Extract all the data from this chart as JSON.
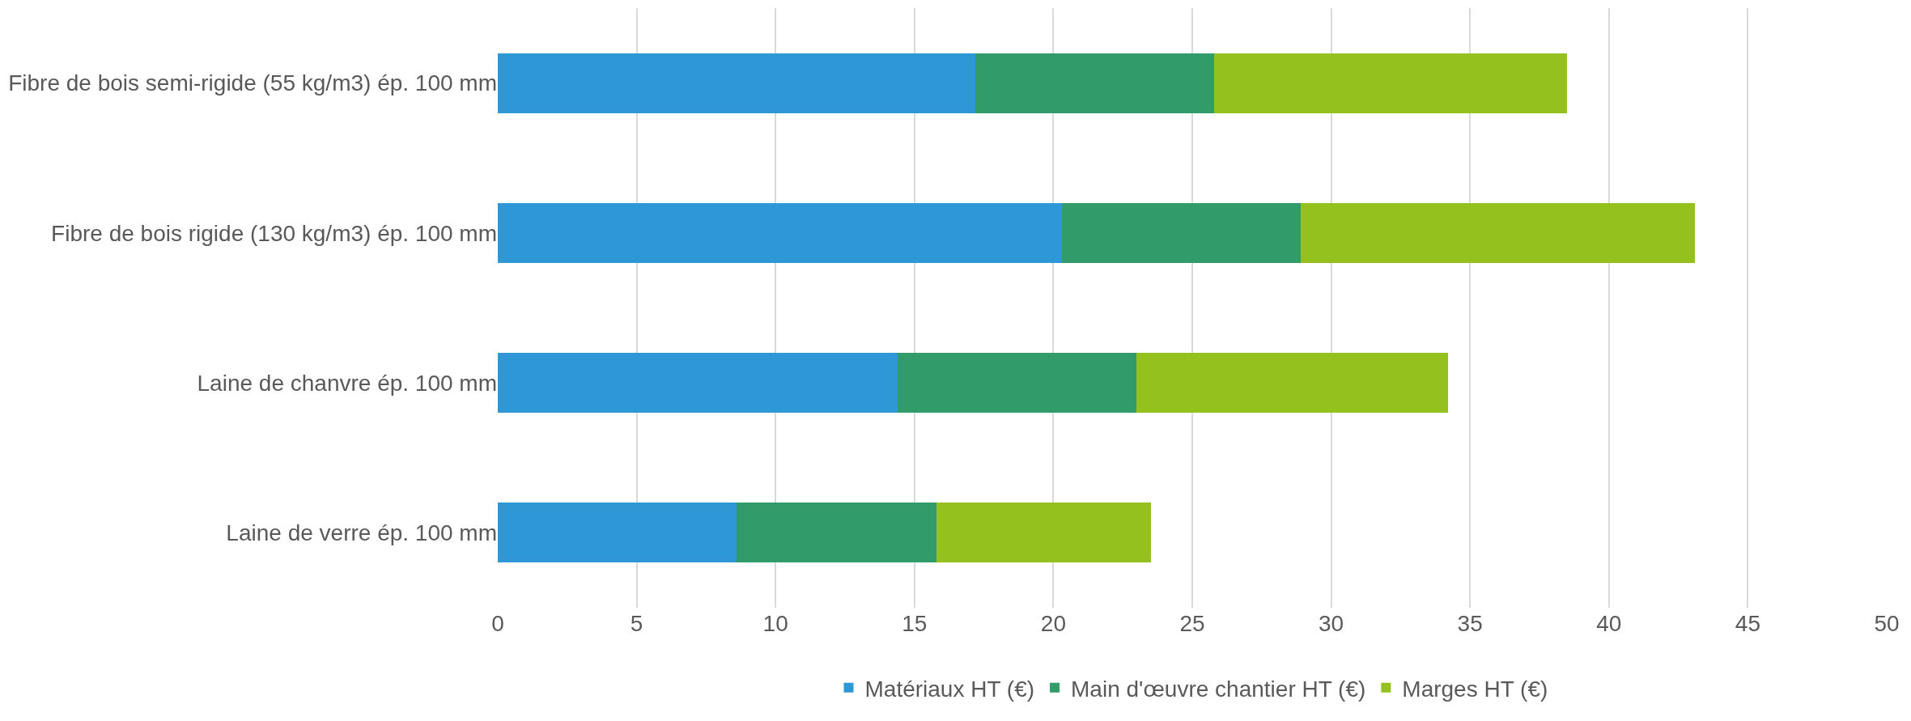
{
  "chart_data": {
    "type": "bar",
    "orientation": "horizontal",
    "stacked": true,
    "categories": [
      "Fibre de bois semi-rigide (55 kg/m3) ép. 100 mm",
      "Fibre de bois rigide (130 kg/m3) ép. 100 mm",
      "Laine de chanvre ép. 100 mm",
      "Laine de verre ép. 100 mm"
    ],
    "series": [
      {
        "name": "Matériaux HT (€)",
        "color": "#2e97d5",
        "values": [
          17.2,
          20.3,
          14.4,
          8.6
        ]
      },
      {
        "name": "Main d'œuvre chantier HT (€)",
        "color": "#319b69",
        "values": [
          8.6,
          8.6,
          8.6,
          7.2
        ]
      },
      {
        "name": "Marges HT (€)",
        "color": "#95c11f",
        "values": [
          12.7,
          14.2,
          11.2,
          7.7
        ]
      }
    ],
    "xlim": [
      0,
      50
    ],
    "xticks": [
      0,
      5,
      10,
      15,
      20,
      25,
      30,
      35,
      40,
      45,
      50
    ],
    "grid": "x",
    "legend": "bottom"
  }
}
